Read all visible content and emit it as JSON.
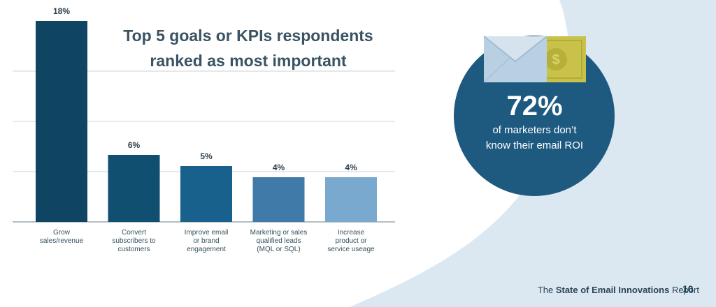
{
  "chart_data": {
    "type": "bar",
    "title_lines": [
      "Top 5 goals or KPIs respondents",
      "ranked as most important"
    ],
    "categories": [
      [
        "Grow",
        "sales/revenue"
      ],
      [
        "Convert",
        "subscribers to",
        "customers"
      ],
      [
        "Improve email",
        "or brand",
        "engagement"
      ],
      [
        "Marketing or sales",
        "qualified leads",
        "(MQL or SQL)"
      ],
      [
        "Increase",
        "product or",
        "service useage"
      ]
    ],
    "values": [
      18,
      6,
      5,
      4,
      4
    ],
    "value_labels": [
      "18%",
      "6%",
      "5%",
      "4%",
      "4%"
    ],
    "ylim": [
      0,
      18
    ],
    "grid": true,
    "bar_colors": [
      "#0f4563",
      "#114f70",
      "#17618c",
      "#3f7aa9",
      "#7aa9cf"
    ]
  },
  "callout": {
    "value": "72%",
    "line1": "of marketers don’t",
    "line2": "know their email ROI",
    "circle_color": "#1e5a80"
  },
  "footer": {
    "prefix": "The ",
    "bold": "State of Email Innovations",
    "suffix": " Report",
    "page": "10"
  },
  "colors": {
    "background_accent": "#dce8f1",
    "axis": "#9aa9b3",
    "grid": "#c9d3da",
    "label_text": "#36505e",
    "value_text": "#2c3e4a"
  }
}
